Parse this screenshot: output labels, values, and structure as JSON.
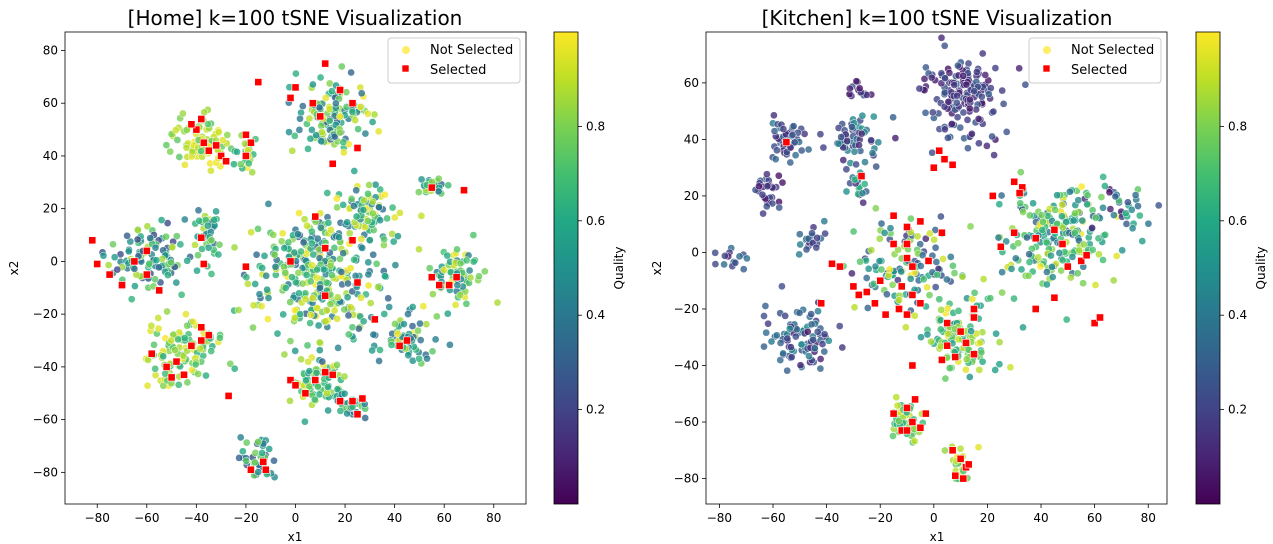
{
  "chart_data": [
    {
      "type": "scatter",
      "title": "[Home] k=100 tSNE Visualization",
      "xlabel": "x1",
      "ylabel": "x2",
      "xlim": [
        -93,
        93
      ],
      "ylim": [
        -92,
        87
      ],
      "xticks": [
        "−80",
        "−60",
        "−40",
        "−20",
        "0",
        "20",
        "40",
        "60",
        "80"
      ],
      "yticks": [
        "80",
        "60",
        "40",
        "20",
        "0",
        "−20",
        "−40",
        "−60",
        "−80"
      ],
      "colorbar": {
        "label": "Quality",
        "ticks": [
          "0.8",
          "0.6",
          "0.4",
          "0.2"
        ],
        "range": [
          0.0,
          1.0
        ]
      },
      "legend": {
        "placement": "top-right",
        "entries": [
          {
            "label": "Not Selected"
          },
          {
            "label": "Selected"
          }
        ]
      },
      "clusters": [
        {
          "x": -60,
          "y": 2,
          "sx": 13,
          "sy": 8,
          "n": 110,
          "q": [
            0.2,
            0.9
          ]
        },
        {
          "x": -45,
          "y": -35,
          "sx": 10,
          "sy": 9,
          "n": 110,
          "q": [
            0.6,
            1.0
          ]
        },
        {
          "x": -38,
          "y": 45,
          "sx": 9,
          "sy": 6,
          "n": 80,
          "q": [
            0.7,
            1.0
          ]
        },
        {
          "x": -20,
          "y": 42,
          "sx": 3,
          "sy": 6,
          "n": 25,
          "q": [
            0.6,
            1.0
          ]
        },
        {
          "x": -35,
          "y": 10,
          "sx": 4,
          "sy": 6,
          "n": 40,
          "q": [
            0.3,
            0.9
          ]
        },
        {
          "x": -15,
          "y": -75,
          "sx": 4,
          "sy": 5,
          "n": 35,
          "q": [
            0.2,
            0.8
          ]
        },
        {
          "x": 10,
          "y": -45,
          "sx": 7,
          "sy": 7,
          "n": 70,
          "q": [
            0.5,
            1.0
          ]
        },
        {
          "x": 22,
          "y": -55,
          "sx": 5,
          "sy": 3,
          "n": 30,
          "q": [
            0.3,
            0.8
          ]
        },
        {
          "x": 15,
          "y": 55,
          "sx": 10,
          "sy": 9,
          "n": 130,
          "q": [
            0.3,
            1.0
          ]
        },
        {
          "x": 10,
          "y": -5,
          "sx": 20,
          "sy": 17,
          "n": 340,
          "q": [
            0.3,
            1.0
          ]
        },
        {
          "x": 45,
          "y": -30,
          "sx": 7,
          "sy": 6,
          "n": 60,
          "q": [
            0.3,
            1.0
          ]
        },
        {
          "x": 65,
          "y": -5,
          "sx": 8,
          "sy": 7,
          "n": 70,
          "q": [
            0.4,
            1.0
          ]
        },
        {
          "x": 55,
          "y": 28,
          "sx": 4,
          "sy": 2,
          "n": 25,
          "q": [
            0.3,
            0.9
          ]
        },
        {
          "x": 30,
          "y": 20,
          "sx": 7,
          "sy": 7,
          "n": 60,
          "q": [
            0.3,
            1.0
          ]
        }
      ],
      "selected": [
        [
          -82,
          8
        ],
        [
          -80,
          -1
        ],
        [
          -75,
          -5
        ],
        [
          -70,
          -9
        ],
        [
          -65,
          0
        ],
        [
          -60,
          4
        ],
        [
          -60,
          -5
        ],
        [
          -55,
          -11
        ],
        [
          -58,
          -35
        ],
        [
          -52,
          -40
        ],
        [
          -50,
          -44
        ],
        [
          -45,
          -43
        ],
        [
          -42,
          -32
        ],
        [
          -38,
          -30
        ],
        [
          -35,
          -28
        ],
        [
          -48,
          -38
        ],
        [
          -38,
          -25
        ],
        [
          -27,
          -51
        ],
        [
          -40,
          50
        ],
        [
          -38,
          54
        ],
        [
          -37,
          45
        ],
        [
          -35,
          42
        ],
        [
          -32,
          44
        ],
        [
          -42,
          52
        ],
        [
          -30,
          40
        ],
        [
          -28,
          38
        ],
        [
          -20,
          48
        ],
        [
          -18,
          45
        ],
        [
          -20,
          40
        ],
        [
          -38,
          9
        ],
        [
          -37,
          -1
        ],
        [
          -20,
          -2
        ],
        [
          -18,
          -79
        ],
        [
          -13,
          -76
        ],
        [
          -12,
          -79
        ],
        [
          -15,
          68
        ],
        [
          -2,
          62
        ],
        [
          0,
          66
        ],
        [
          7,
          60
        ],
        [
          10,
          55
        ],
        [
          12,
          75
        ],
        [
          18,
          65
        ],
        [
          23,
          60
        ],
        [
          25,
          43
        ],
        [
          15,
          37
        ],
        [
          8,
          17
        ],
        [
          12,
          5
        ],
        [
          -2,
          0
        ],
        [
          23,
          8
        ],
        [
          12,
          -13
        ],
        [
          25,
          -8
        ],
        [
          32,
          -22
        ],
        [
          -2,
          -45
        ],
        [
          0,
          -47
        ],
        [
          4,
          -50
        ],
        [
          8,
          -45
        ],
        [
          12,
          -42
        ],
        [
          15,
          -43
        ],
        [
          18,
          -53
        ],
        [
          23,
          -53
        ],
        [
          25,
          -58
        ],
        [
          27,
          -52
        ],
        [
          42,
          -32
        ],
        [
          45,
          -30
        ],
        [
          55,
          -6
        ],
        [
          58,
          -9
        ],
        [
          62,
          -9
        ],
        [
          65,
          -6
        ],
        [
          68,
          27
        ],
        [
          55,
          28
        ]
      ]
    },
    {
      "type": "scatter",
      "title": "[Kitchen] k=100 tSNE Visualization",
      "xlabel": "x1",
      "ylabel": "x2",
      "xlim": [
        -85,
        87
      ],
      "ylim": [
        -89,
        78
      ],
      "xticks": [
        "−80",
        "−60",
        "−40",
        "−20",
        "0",
        "20",
        "40",
        "60",
        "80"
      ],
      "yticks": [
        "60",
        "40",
        "20",
        "0",
        "−20",
        "−40",
        "−60",
        "−80"
      ],
      "colorbar": {
        "label": "Quality",
        "ticks": [
          "0.8",
          "0.6",
          "0.4",
          "0.2"
        ],
        "range": [
          0.0,
          1.0
        ]
      },
      "legend": {
        "placement": "top-right",
        "entries": [
          {
            "label": "Not Selected"
          },
          {
            "label": "Selected"
          }
        ]
      },
      "clusters": [
        {
          "x": 10,
          "y": 55,
          "sx": 10,
          "sy": 10,
          "n": 160,
          "q": [
            0.05,
            0.3
          ]
        },
        {
          "x": -55,
          "y": 40,
          "sx": 5,
          "sy": 6,
          "n": 50,
          "q": [
            0.1,
            0.4
          ]
        },
        {
          "x": -62,
          "y": 22,
          "sx": 4,
          "sy": 5,
          "n": 30,
          "q": [
            0.05,
            0.3
          ]
        },
        {
          "x": -30,
          "y": 40,
          "sx": 6,
          "sy": 6,
          "n": 55,
          "q": [
            0.1,
            0.5
          ]
        },
        {
          "x": -29,
          "y": 57,
          "sx": 3,
          "sy": 2,
          "n": 15,
          "q": [
            0.05,
            0.3
          ]
        },
        {
          "x": -28,
          "y": 25,
          "sx": 3,
          "sy": 4,
          "n": 20,
          "q": [
            0.1,
            0.7
          ]
        },
        {
          "x": -50,
          "y": -30,
          "sx": 8,
          "sy": 7,
          "n": 90,
          "q": [
            0.05,
            0.5
          ]
        },
        {
          "x": -10,
          "y": -5,
          "sx": 12,
          "sy": 11,
          "n": 120,
          "q": [
            0.1,
            1.0
          ]
        },
        {
          "x": 10,
          "y": -30,
          "sx": 9,
          "sy": 9,
          "n": 120,
          "q": [
            0.5,
            1.0
          ]
        },
        {
          "x": 45,
          "y": 5,
          "sx": 14,
          "sy": 12,
          "n": 200,
          "q": [
            0.3,
            1.0
          ]
        },
        {
          "x": -10,
          "y": -60,
          "sx": 5,
          "sy": 5,
          "n": 45,
          "q": [
            0.6,
            1.0
          ]
        },
        {
          "x": 10,
          "y": -75,
          "sx": 4,
          "sy": 4,
          "n": 25,
          "q": [
            0.7,
            1.0
          ]
        },
        {
          "x": 70,
          "y": 15,
          "sx": 7,
          "sy": 6,
          "n": 40,
          "q": [
            0.05,
            0.8
          ]
        },
        {
          "x": -75,
          "y": -2,
          "sx": 4,
          "sy": 3,
          "n": 15,
          "q": [
            0.05,
            0.4
          ]
        },
        {
          "x": -45,
          "y": 5,
          "sx": 4,
          "sy": 4,
          "n": 20,
          "q": [
            0.1,
            0.5
          ]
        }
      ],
      "selected": [
        [
          -55,
          39
        ],
        [
          -27,
          27
        ],
        [
          2,
          36
        ],
        [
          4,
          33
        ],
        [
          7,
          31
        ],
        [
          0,
          30
        ],
        [
          -15,
          13
        ],
        [
          -10,
          9
        ],
        [
          -5,
          11
        ],
        [
          3,
          7
        ],
        [
          -15,
          3
        ],
        [
          -10,
          -2
        ],
        [
          -8,
          -5
        ],
        [
          -2,
          -3
        ],
        [
          -10,
          3
        ],
        [
          -38,
          -4
        ],
        [
          -35,
          -5
        ],
        [
          -42,
          -18
        ],
        [
          -30,
          -12
        ],
        [
          -28,
          -15
        ],
        [
          -25,
          -14
        ],
        [
          -20,
          -10
        ],
        [
          -22,
          -18
        ],
        [
          -18,
          -22
        ],
        [
          -12,
          -12
        ],
        [
          -8,
          -15
        ],
        [
          -5,
          -18
        ],
        [
          -10,
          -22
        ],
        [
          -13,
          -20
        ],
        [
          5,
          -25
        ],
        [
          15,
          -20
        ],
        [
          15,
          -23
        ],
        [
          10,
          -28
        ],
        [
          5,
          -33
        ],
        [
          8,
          -37
        ],
        [
          12,
          -32
        ],
        [
          15,
          -36
        ],
        [
          3,
          -38
        ],
        [
          -8,
          -40
        ],
        [
          -15,
          -57
        ],
        [
          -10,
          -55
        ],
        [
          -8,
          -60
        ],
        [
          -12,
          -63
        ],
        [
          -5,
          -62
        ],
        [
          -3,
          -57
        ],
        [
          -7,
          -52
        ],
        [
          -10,
          -63
        ],
        [
          7,
          -70
        ],
        [
          10,
          -73
        ],
        [
          12,
          -76
        ],
        [
          8,
          -79
        ],
        [
          11,
          -80
        ],
        [
          13,
          -75
        ],
        [
          22,
          20
        ],
        [
          30,
          25
        ],
        [
          33,
          23
        ],
        [
          30,
          7
        ],
        [
          25,
          2
        ],
        [
          32,
          21
        ],
        [
          38,
          5
        ],
        [
          45,
          8
        ],
        [
          48,
          3
        ],
        [
          50,
          -5
        ],
        [
          55,
          -3
        ],
        [
          57,
          -1
        ],
        [
          45,
          -16
        ],
        [
          38,
          -20
        ],
        [
          60,
          -25
        ],
        [
          62,
          -23
        ]
      ]
    }
  ]
}
